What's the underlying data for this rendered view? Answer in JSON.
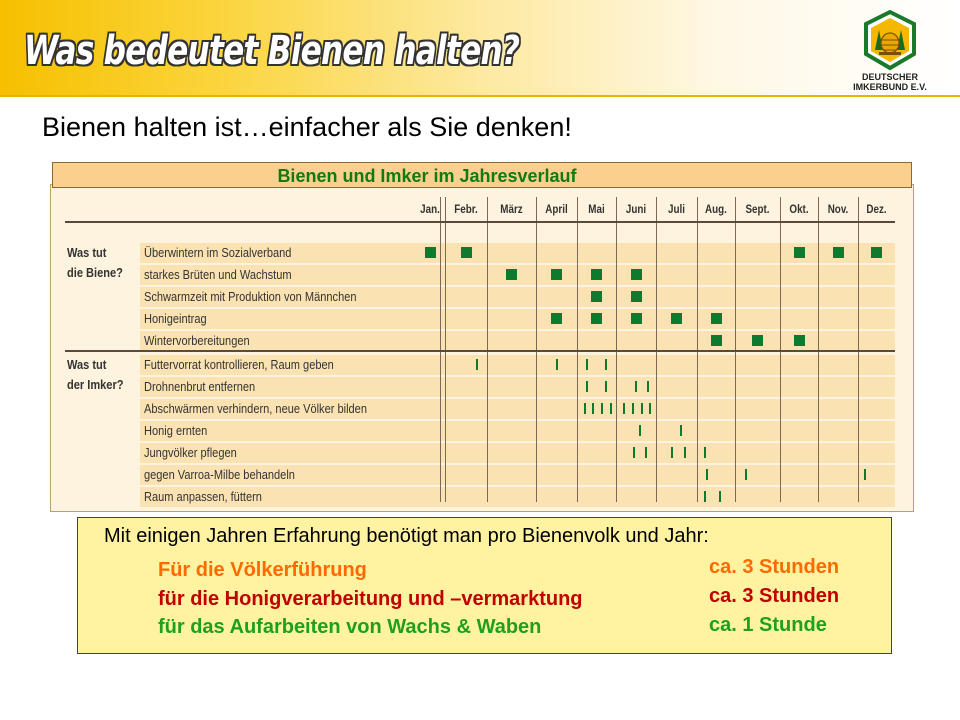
{
  "slide": {
    "title": "Was bedeutet Bienen halten?",
    "subtitle": "Bienen halten ist…einfacher als Sie denken!"
  },
  "logo": {
    "line1": "DEUTSCHER",
    "line2": "IMKERBUND E.V."
  },
  "chart": {
    "title": "Bienen und Imker im Jahresverlauf",
    "months": [
      "Jan.",
      "Febr.",
      "März",
      "April",
      "Mai",
      "Juni",
      "Juli",
      "Aug.",
      "Sept.",
      "Okt.",
      "Nov.",
      "Dez."
    ],
    "groups": [
      {
        "label": "Was tut\ndie Biene?",
        "marker": "square",
        "rows": [
          {
            "label": "Überwintern im Sozialverband",
            "marks": [
              0,
              1,
              9,
              10,
              11
            ]
          },
          {
            "label": "starkes Brüten und Wachstum",
            "marks": [
              2,
              3,
              4,
              5
            ]
          },
          {
            "label": "Schwarmzeit mit Produktion von Männchen",
            "marks": [
              4,
              5
            ]
          },
          {
            "label": "Honigeintrag",
            "marks": [
              3,
              4,
              5,
              6,
              7
            ]
          },
          {
            "label": "Wintervorbereitungen",
            "marks": [
              7,
              8,
              9
            ]
          }
        ]
      },
      {
        "label": "Was tut\nder Imker?",
        "marker": "tick",
        "rows": [
          {
            "label": "Futtervorrat kontrollieren, Raum geben",
            "ticks": [
              1.75,
              3.5,
              4.25,
              4.75
            ]
          },
          {
            "label": "Drohnenbrut entfernen",
            "ticks": [
              4.25,
              4.75,
              5.5,
              5.8
            ]
          },
          {
            "label": "Abschwärmen verhindern, neue Völker bilden",
            "ticks": [
              4.2,
              4.42,
              4.64,
              4.86,
              5.2,
              5.42,
              5.64,
              5.86
            ]
          },
          {
            "label": "Honig ernten",
            "ticks": [
              5.6,
              6.6
            ]
          },
          {
            "label": "Jungvölker pflegen",
            "ticks": [
              5.45,
              5.75,
              6.4,
              6.7,
              7.2
            ]
          },
          {
            "label": "gegen Varroa-Milbe behandeln",
            "ticks": [
              7.25,
              8.25,
              11.2
            ]
          },
          {
            "label": "Raum anpassen, füttern",
            "ticks": [
              7.2,
              7.6
            ]
          }
        ]
      }
    ]
  },
  "info": {
    "heading": "Mit einigen Jahren Erfahrung benötigt man pro Bienenvolk und Jahr:",
    "items": [
      {
        "label": "Für die Völkerführung",
        "value": "ca. 3 Stunden",
        "color": "#ff6a00",
        "value_color": "#ff6a00"
      },
      {
        "label": "für die Honigverarbeitung und –vermarktung",
        "value": "ca. 3 Stunden",
        "color": "#c00000",
        "value_color": "#c00000"
      },
      {
        "label": "für das Aufarbeiten von Wachs & Waben",
        "value": "ca. 1 Stunde",
        "color": "#1f9f1f",
        "value_color": "#1f9f1f"
      }
    ]
  }
}
